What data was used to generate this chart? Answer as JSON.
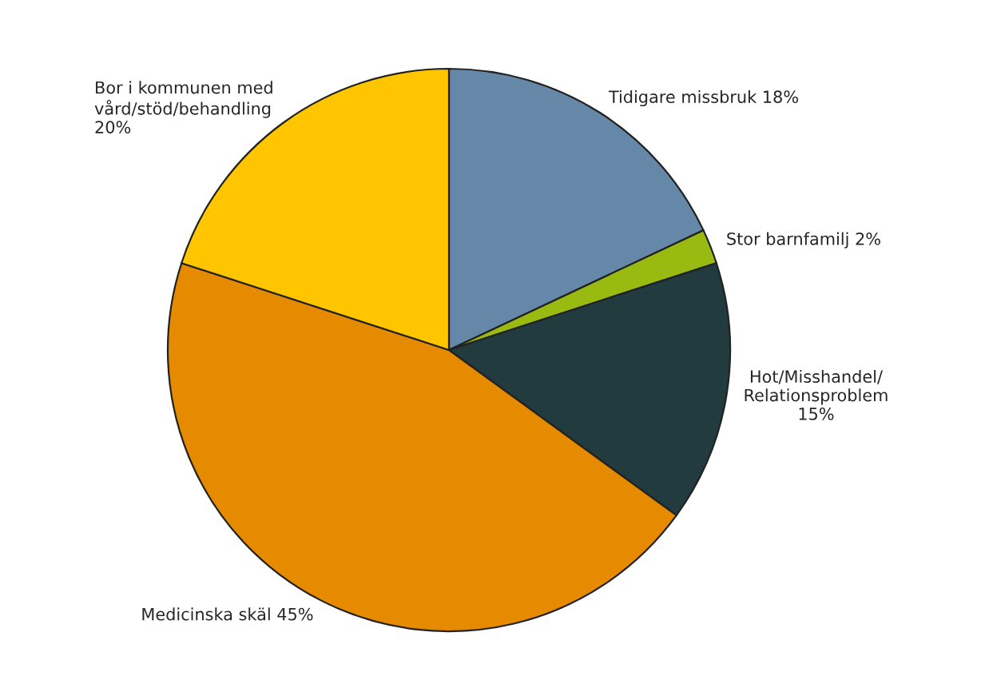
{
  "chart_data": {
    "type": "pie",
    "categories": [
      "Tidigare missbruk",
      "Stor barnfamilj",
      "Hot/Misshandel/\nRelationsproblem",
      "Medicinska skäl",
      "Bor i kommunen med\nvård/stöd/behandling"
    ],
    "values": [
      18,
      2,
      15,
      45,
      20
    ],
    "value_labels": [
      "18%",
      "2%",
      "15%",
      "45%",
      "20%"
    ],
    "colors": [
      "#6688a8",
      "#99bb11",
      "#223b3f",
      "#e68a00",
      "#ffc600"
    ],
    "legend": false
  }
}
